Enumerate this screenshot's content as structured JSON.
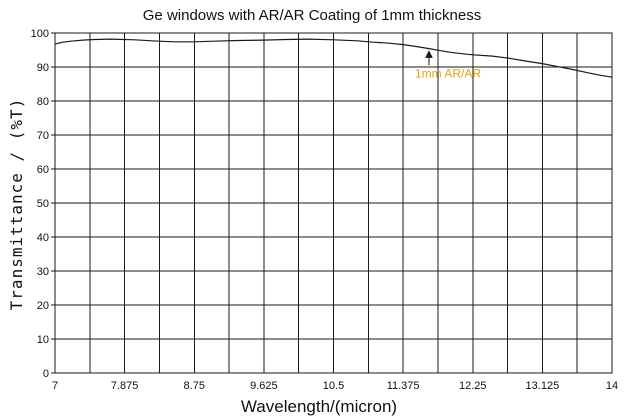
{
  "chart_data": {
    "type": "line",
    "title": "Ge windows with AR/AR Coating of 1mm thickness",
    "xlabel": "Wavelength/(micron)",
    "ylabel": "Transmittance / (%T)",
    "xlim": [
      7,
      14
    ],
    "ylim": [
      0,
      100
    ],
    "x_ticks": [
      "7",
      "7.875",
      "8.75",
      "9.625",
      "10.5",
      "11.375",
      "12.25",
      "13.125",
      "14"
    ],
    "y_ticks": [
      "0",
      "10",
      "20",
      "30",
      "40",
      "50",
      "60",
      "70",
      "80",
      "90",
      "100"
    ],
    "grid": true,
    "series": [
      {
        "x": [
          7.0,
          7.1,
          7.2,
          7.35,
          7.5,
          7.7,
          8.0,
          8.3,
          8.5,
          8.75,
          9.0,
          9.3,
          9.625,
          9.9,
          10.2,
          10.5,
          10.8,
          11.0,
          11.2,
          11.375,
          11.55,
          11.7,
          11.85,
          12.0,
          12.25,
          12.5,
          12.7,
          12.9,
          13.125,
          13.3,
          13.5,
          13.7,
          13.85,
          14.0
        ],
        "y": [
          96.8,
          97.3,
          97.6,
          97.9,
          98.1,
          98.2,
          98.0,
          97.6,
          97.4,
          97.4,
          97.6,
          97.8,
          97.9,
          98.1,
          98.2,
          98.0,
          97.7,
          97.3,
          97.0,
          96.6,
          96.0,
          95.4,
          94.8,
          94.2,
          93.6,
          93.2,
          92.6,
          91.8,
          91.0,
          90.2,
          89.3,
          88.3,
          87.6,
          87.0
        ]
      }
    ],
    "annotation": {
      "text": "1mm AR/AR",
      "x": 11.7,
      "y": 95.2
    }
  }
}
